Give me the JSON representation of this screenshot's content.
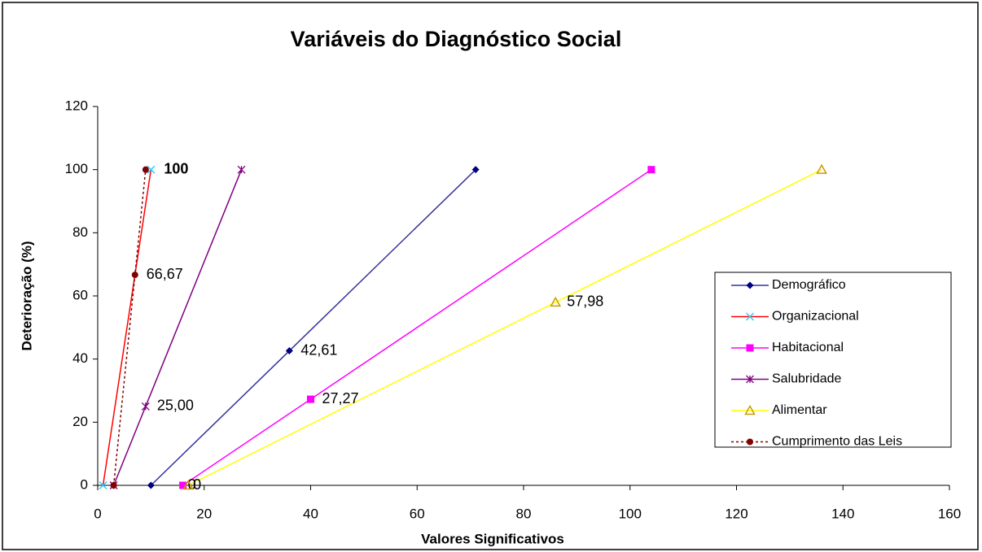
{
  "chart_data": {
    "type": "line",
    "title": "Variáveis do Diagnóstico Social",
    "x_label": "Valores Significativos",
    "y_label": "Deterioração (%)",
    "xlim": [
      0,
      160
    ],
    "xticks": [
      0,
      20,
      40,
      60,
      80,
      100,
      120,
      140,
      160
    ],
    "ylim": [
      0,
      120
    ],
    "yticks": [
      0,
      20,
      40,
      60,
      80,
      100,
      120
    ],
    "grid": false,
    "legend": "right",
    "series": [
      {
        "name": "Demográfico",
        "color": "#333399",
        "marker": "diamond",
        "marker_color": "#000080",
        "x": [
          10,
          36,
          71
        ],
        "values": [
          0,
          42.61,
          100
        ],
        "value_labels": [
          null,
          "42,61",
          null
        ]
      },
      {
        "name": "Organizacional",
        "color": "#ff0000",
        "marker": "cross",
        "marker_color": "#33ccff",
        "x": [
          1,
          10
        ],
        "values": [
          0,
          100
        ],
        "value_labels": [
          null,
          "100"
        ]
      },
      {
        "name": "Habitacional",
        "color": "#ff00ff",
        "marker": "square",
        "marker_color": "#ff00ff",
        "x": [
          16,
          40,
          104
        ],
        "values": [
          0,
          27.27,
          100
        ],
        "value_labels": [
          "0",
          "27,27",
          null
        ]
      },
      {
        "name": "Salubridade",
        "color": "#800080",
        "marker": "star",
        "marker_color": "#800080",
        "x": [
          3,
          9,
          27
        ],
        "values": [
          0,
          25,
          100
        ],
        "value_labels": [
          null,
          "25,00",
          null
        ]
      },
      {
        "name": "Alimentar",
        "color": "#ffff00",
        "marker": "triangle",
        "marker_color": "#cc9900",
        "x": [
          17,
          86,
          136
        ],
        "values": [
          0,
          57.98,
          100
        ],
        "value_labels": [
          "0",
          "57,98",
          null
        ]
      },
      {
        "name": "Cumprimento das Leis",
        "color": "#800000",
        "marker": "circle",
        "marker_color": "#800000",
        "dashed": true,
        "x": [
          3,
          7,
          9
        ],
        "values": [
          0,
          66.67,
          100
        ],
        "value_labels": [
          null,
          "66,67",
          null
        ]
      }
    ]
  }
}
